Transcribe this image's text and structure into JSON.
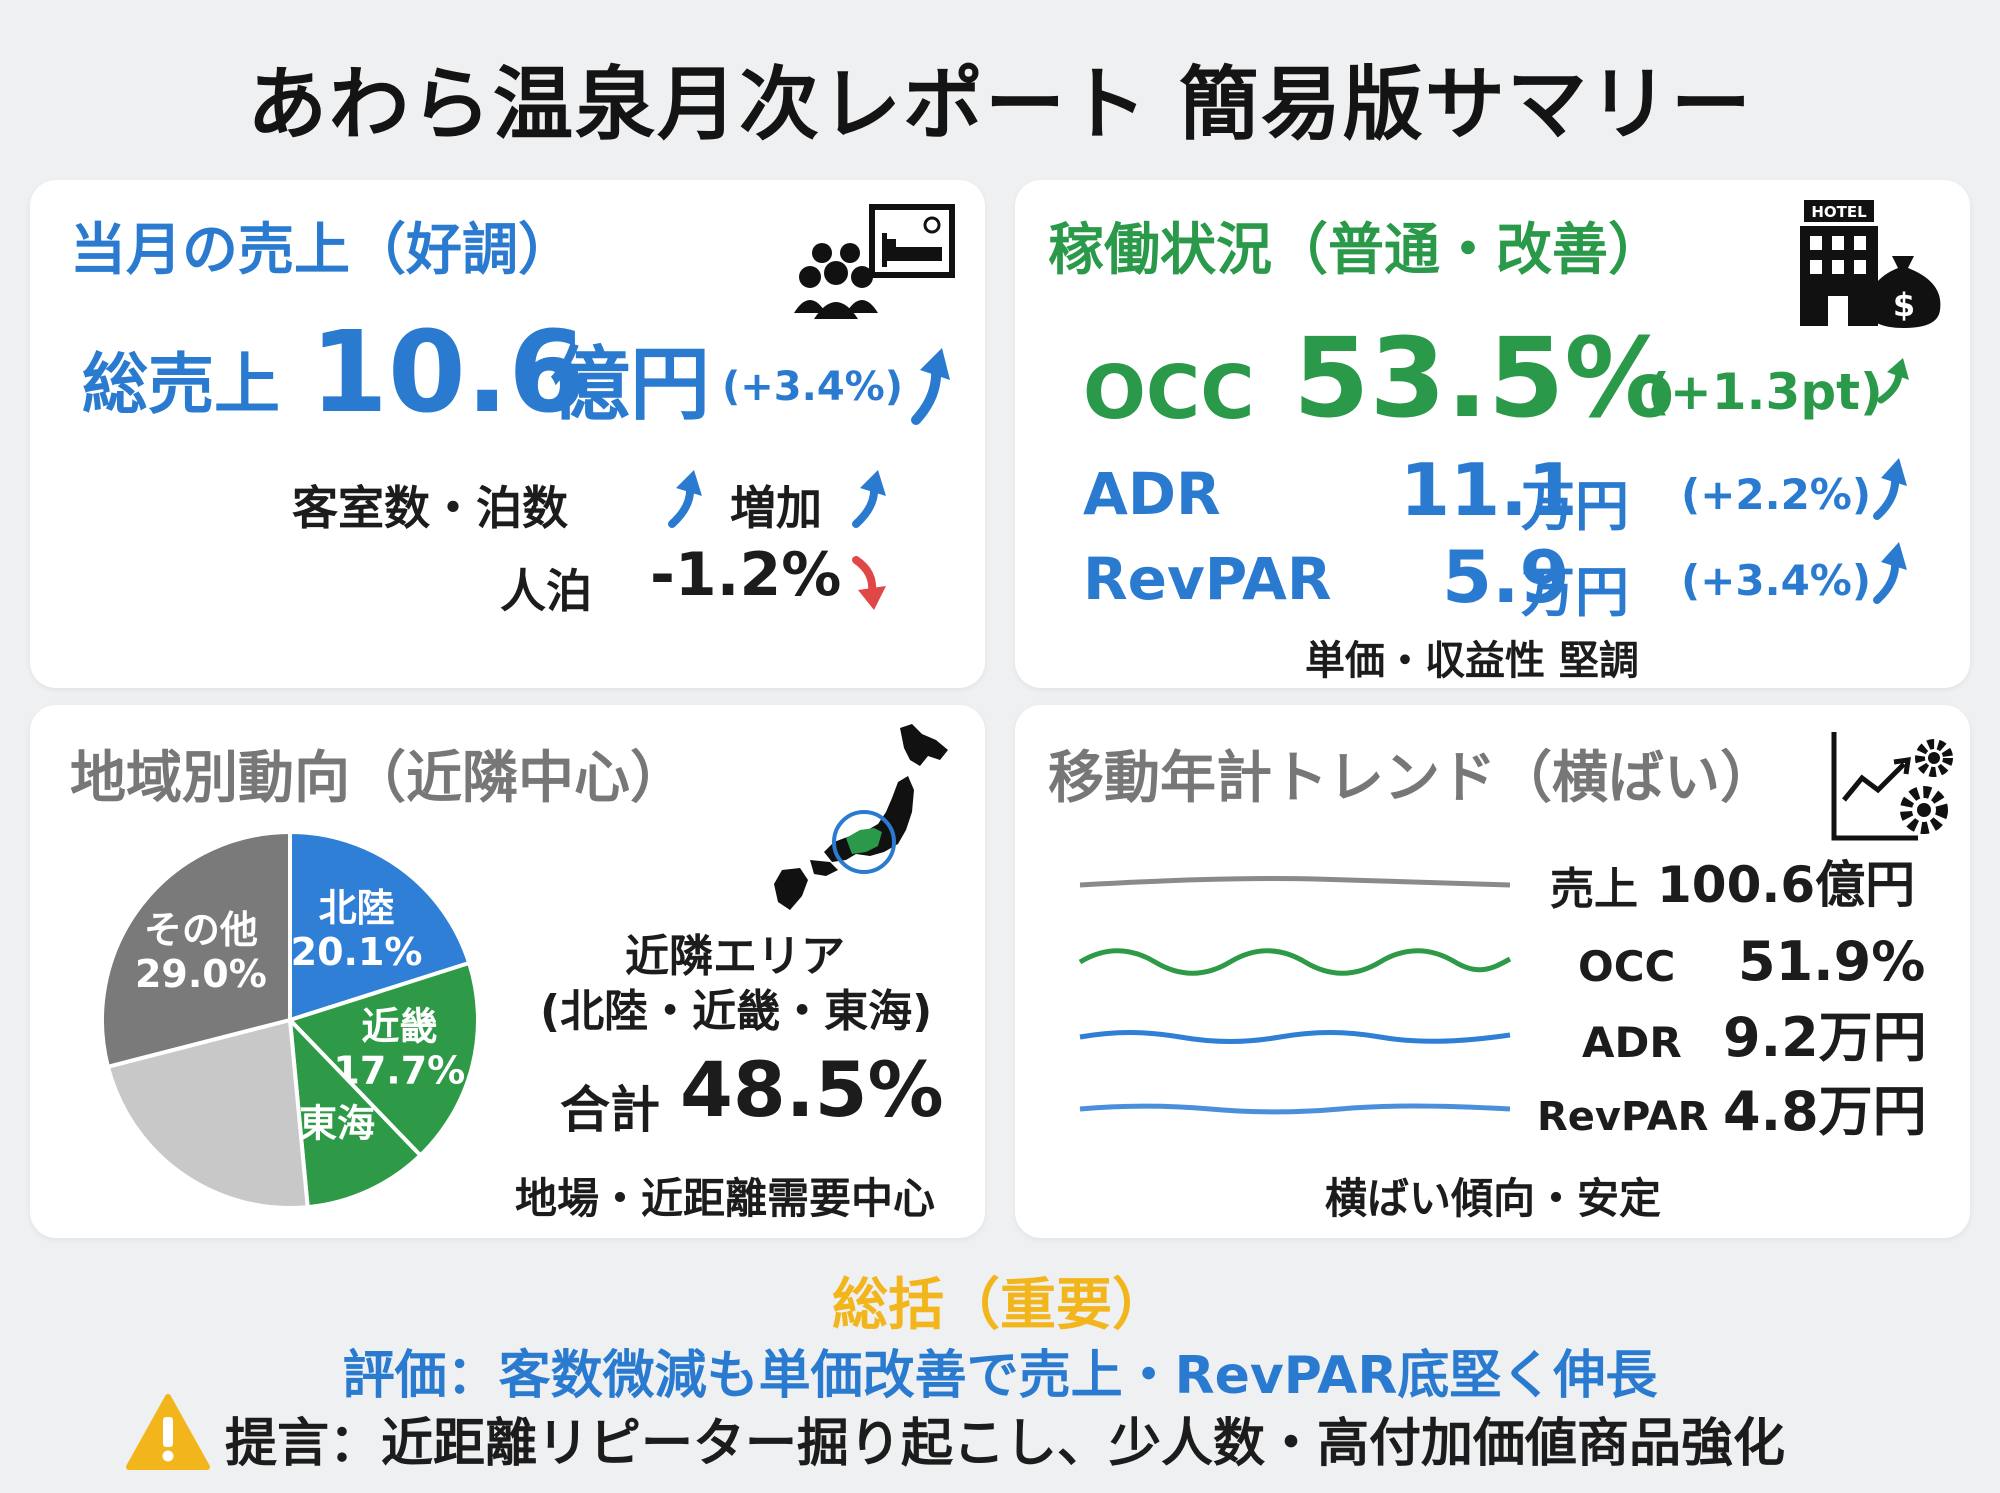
{
  "title": "あわら温泉月次レポート 簡易版サマリー",
  "sales": {
    "heading": "当月の売上（好調）",
    "total_label": "総売上",
    "total_value": "10.6",
    "total_unit": "億円",
    "total_change": "(+3.4%)",
    "rooms_label": "客室数・泊数",
    "rooms_status": "増加",
    "guests_label": "人泊",
    "guests_change": "-1.2%"
  },
  "operation": {
    "heading": "稼働状況（普通・改善）",
    "occ_label": "OCC",
    "occ_value": "53.5%",
    "occ_change": "(+1.3pt)",
    "adr_label": "ADR",
    "adr_value": "11.1",
    "adr_unit": "万円",
    "adr_change": "(+2.2%)",
    "revpar_label": "RevPAR",
    "revpar_value": "5.9",
    "revpar_unit": "万円",
    "revpar_change": "(+3.4%)",
    "note": "単価・収益性 堅調",
    "hotel_sign": "HOTEL"
  },
  "region": {
    "heading": "地域別動向（近隣中心）",
    "area_title": "近隣エリア",
    "area_members": "(北陸・近畿・東海)",
    "total_label": "合計",
    "total_value": "48.5%",
    "note": "地場・近距離需要中心"
  },
  "chart_data": {
    "type": "pie",
    "slices": [
      {
        "label": "北陸",
        "value": 20.1,
        "value_label": "20.1%",
        "color": "#2f7fd6"
      },
      {
        "label": "近畿",
        "value": 17.7,
        "value_label": "17.7%",
        "color": "#2e9a47"
      },
      {
        "label": "東海",
        "value": 10.7,
        "value_label": "",
        "color": "#2e9a47"
      },
      {
        "label": "",
        "value": 22.5,
        "value_label": "",
        "color": "#c8c8c8"
      },
      {
        "label": "その他",
        "value": 29.0,
        "value_label": "29.0%",
        "color": "#7a7a7a"
      }
    ]
  },
  "trend": {
    "heading": "移動年計トレンド（横ばい）",
    "rows": [
      {
        "label": "売上",
        "value": "100.6億円",
        "color": "#8a8a8a"
      },
      {
        "label": "OCC",
        "value": "51.9%",
        "color": "#2e9a47"
      },
      {
        "label": "ADR",
        "value": "9.2万円",
        "color": "#2f7fd6"
      },
      {
        "label": "RevPAR",
        "value": "4.8万円",
        "color": "#4a8fdc"
      }
    ],
    "note": "横ばい傾向・安定"
  },
  "summary": {
    "heading": "総括（重要）",
    "evaluation": "評価：客数微減も単価改善で売上・RevPAR底堅く伸長",
    "proposal": "提言：近距離リピーター掘り起こし、少人数・高付加価値商品強化"
  },
  "colors": {
    "blue": "#2a7bd0",
    "green": "#2a9a4a",
    "gold": "#f2b51c",
    "red": "#e04848"
  },
  "icons": [
    "guests-bed-icon",
    "hotel-money-icon",
    "japan-map-icon",
    "trend-gear-icon",
    "warning-icon"
  ]
}
